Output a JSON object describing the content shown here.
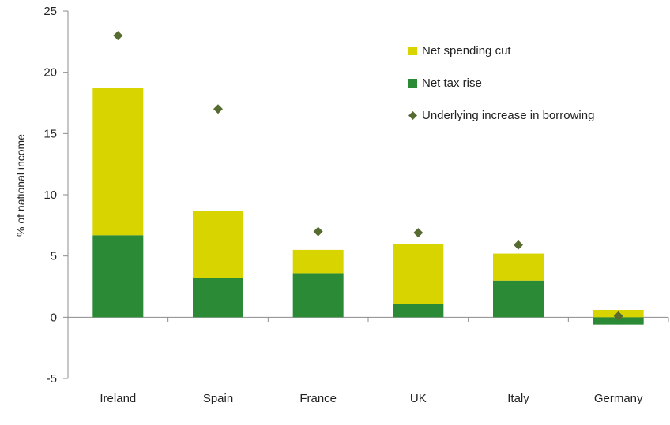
{
  "chart_data": {
    "type": "bar",
    "stacked": true,
    "categories": [
      "Ireland",
      "Spain",
      "France",
      "UK",
      "Italy",
      "Germany"
    ],
    "series": [
      {
        "name": "Net tax rise",
        "kind": "bar",
        "color": "#2a8a36",
        "values": [
          6.7,
          3.2,
          3.6,
          1.1,
          3.0,
          -0.6
        ]
      },
      {
        "name": "Net spending cut",
        "kind": "bar",
        "color": "#d8d400",
        "values": [
          12.0,
          5.5,
          1.9,
          4.9,
          2.2,
          0.6
        ]
      },
      {
        "name": "Underlying increase in borrowing",
        "kind": "marker",
        "color": "#556b2f",
        "values": [
          23.0,
          17.0,
          7.0,
          6.9,
          5.9,
          0.1
        ]
      }
    ],
    "legend_order": [
      "Net spending cut",
      "Net tax rise",
      "Underlying increase in borrowing"
    ],
    "legend_position": "top-right",
    "ylabel": "% of national income",
    "xlabel": "",
    "ylim": [
      -5,
      25
    ],
    "yticks": [
      -5,
      0,
      5,
      10,
      15,
      20,
      25
    ],
    "grid": false
  }
}
